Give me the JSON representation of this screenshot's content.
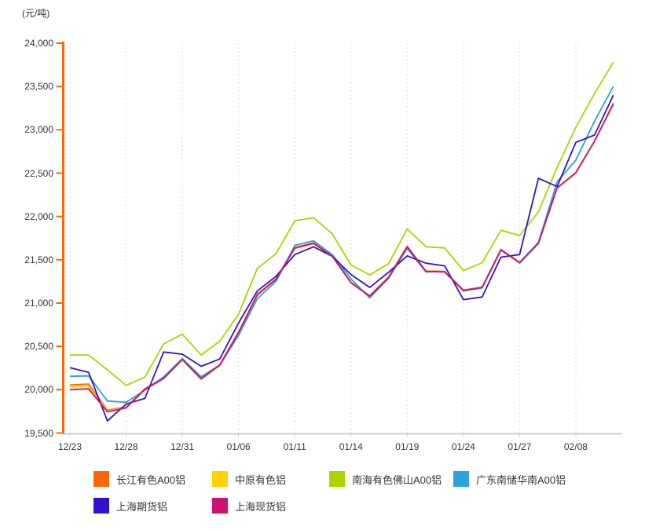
{
  "unit_label": "(元/吨)",
  "chart_data": {
    "type": "line",
    "title": "",
    "ylabel_unit": "(元/吨)",
    "ylim": [
      19500,
      24000
    ],
    "y_tick_step": 500,
    "y_tick_labels": [
      "24,000",
      "23,500",
      "23,000",
      "22,500",
      "22,000",
      "21,500",
      "21,000",
      "20,500",
      "20,000",
      "19,500"
    ],
    "x_labels": [
      "12/23",
      "12/28",
      "12/31",
      "01/06",
      "01/11",
      "01/14",
      "01/19",
      "01/24",
      "01/27",
      "02/08"
    ],
    "points_per_label": 3,
    "grid": "vertical-dashed",
    "legend_position": "bottom",
    "y_axis_color": "#FF6600",
    "x_axis_color": "#CCCCCC",
    "gridline_color": "#DDDDDD",
    "series": [
      {
        "name": "长江有色A00铝",
        "color": "#FF6600",
        "values": [
          20055,
          20065,
          19765,
          19800,
          20010,
          20135,
          20355,
          20130,
          20290,
          20665,
          21100,
          21280,
          21640,
          21695,
          21545,
          21240,
          21085,
          21300,
          21655,
          21370,
          21365,
          21150,
          21185,
          21620,
          21470,
          21690,
          22330,
          22505,
          22870,
          23300
        ]
      },
      {
        "name": "中原有色铝",
        "color": "#FFD200",
        "values": [
          20030,
          20040,
          19755,
          19795,
          20000,
          20125,
          20345,
          20120,
          20280,
          20655,
          21090,
          21270,
          21630,
          21685,
          21540,
          21235,
          21080,
          21295,
          21650,
          21365,
          21360,
          21145,
          21180,
          21615,
          21465,
          21685,
          22325,
          22500,
          22865,
          23290
        ]
      },
      {
        "name": "南海有色佛山A00铝",
        "color": "#AAD400",
        "values": [
          20400,
          20400,
          20230,
          20050,
          20145,
          20530,
          20640,
          20400,
          20560,
          20870,
          21400,
          21570,
          21950,
          21985,
          21800,
          21440,
          21325,
          21455,
          21855,
          21650,
          21636,
          21375,
          21465,
          21840,
          21780,
          22050,
          22565,
          23030,
          23420,
          23780
        ]
      },
      {
        "name": "广东南储华南A00铝",
        "color": "#2BA3DC",
        "values": [
          20155,
          20160,
          19870,
          19855,
          19995,
          20150,
          20360,
          20150,
          20285,
          20625,
          21050,
          21250,
          21665,
          21720,
          21560,
          21280,
          21060,
          21285,
          21630,
          21360,
          21365,
          21140,
          21175,
          21610,
          21470,
          21700,
          22400,
          22650,
          23100,
          23500
        ]
      },
      {
        "name": "上海期货铝",
        "color": "#3311CC",
        "values": [
          20255,
          20200,
          19640,
          19835,
          19900,
          20435,
          20410,
          20270,
          20355,
          20770,
          21140,
          21310,
          21560,
          21650,
          21540,
          21330,
          21180,
          21355,
          21545,
          21460,
          21430,
          21040,
          21070,
          21530,
          21560,
          22440,
          22345,
          22855,
          22940,
          23400
        ]
      },
      {
        "name": "上海现货铝",
        "color": "#CC1177",
        "values": [
          20000,
          20010,
          19745,
          19790,
          20005,
          20130,
          20350,
          20125,
          20285,
          20660,
          21095,
          21275,
          21635,
          21690,
          21540,
          21235,
          21080,
          21295,
          21650,
          21365,
          21360,
          21145,
          21180,
          21615,
          21465,
          21690,
          22330,
          22505,
          22870,
          23305
        ]
      }
    ]
  }
}
